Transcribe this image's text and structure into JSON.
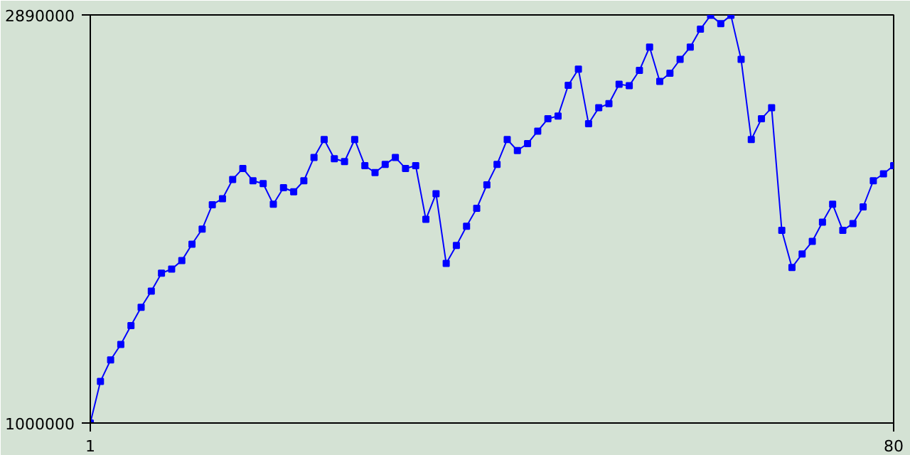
{
  "chart_data": {
    "type": "line",
    "x": [
      1,
      2,
      3,
      4,
      5,
      6,
      7,
      8,
      9,
      10,
      11,
      12,
      13,
      14,
      15,
      16,
      17,
      18,
      19,
      20,
      21,
      22,
      23,
      24,
      25,
      26,
      27,
      28,
      29,
      30,
      31,
      32,
      33,
      34,
      35,
      36,
      37,
      38,
      39,
      40,
      41,
      42,
      43,
      44,
      45,
      46,
      47,
      48,
      49,
      50,
      51,
      52,
      53,
      54,
      55,
      56,
      57,
      58,
      59,
      60,
      61,
      62,
      63,
      64,
      65,
      66,
      67,
      68,
      69,
      70,
      71,
      72,
      73,
      74,
      75,
      76,
      77,
      78,
      79,
      80
    ],
    "series": [
      {
        "color": "#0000ff",
        "values": [
          1000000,
          1193000,
          1292000,
          1364000,
          1451000,
          1536000,
          1611000,
          1694000,
          1713000,
          1752000,
          1828000,
          1898000,
          2011000,
          2039000,
          2128000,
          2179000,
          2122000,
          2109000,
          2013000,
          2090000,
          2071000,
          2122000,
          2230000,
          2313000,
          2224000,
          2211000,
          2313000,
          2192000,
          2160000,
          2198000,
          2230000,
          2179000,
          2192000,
          1943000,
          2062000,
          1739000,
          1822000,
          1911000,
          1994000,
          2103000,
          2198000,
          2313000,
          2262000,
          2294000,
          2352000,
          2409000,
          2422000,
          2564000,
          2639000,
          2386000,
          2460000,
          2479000,
          2569000,
          2562000,
          2633000,
          2741000,
          2582000,
          2620000,
          2684000,
          2741000,
          2824000,
          2888000,
          2850000,
          2888000,
          2684000,
          2313000,
          2409000,
          2460000,
          1892000,
          1720000,
          1783000,
          1841000,
          1930000,
          2013000,
          1892000,
          1924000,
          2001000,
          2122000,
          2154000,
          2192000
        ]
      }
    ],
    "xlim": [
      1,
      80
    ],
    "ylim": [
      1000000,
      2890000
    ],
    "xticks": [
      1,
      80
    ],
    "yticks": [
      1000000,
      2890000
    ],
    "marker": "square",
    "line_style": "solid"
  }
}
